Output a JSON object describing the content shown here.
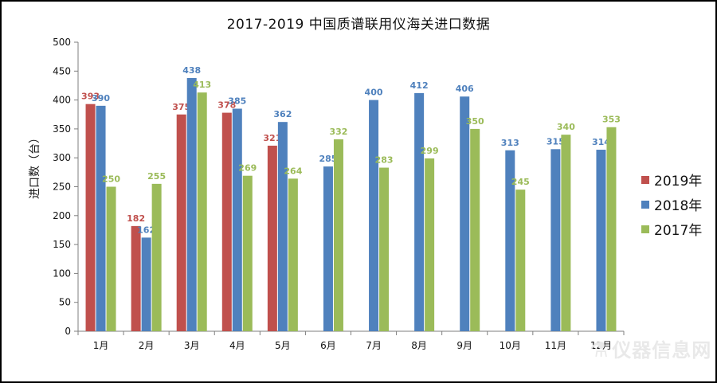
{
  "colors": {
    "2019": "#C0504D",
    "2018": "#4F81BD",
    "2017": "#9BBB59",
    "axis": "#7f7f7f"
  },
  "watermark": {
    "text": "仪器信息网",
    "icon": "instrument-logo-icon"
  },
  "chart_data": {
    "type": "bar",
    "title": "2017-2019 中国质谱联用仪海关进口数据",
    "xlabel": "",
    "ylabel": "进口数（台）",
    "ylim": [
      0,
      500
    ],
    "yticks": [
      0,
      50,
      100,
      150,
      200,
      250,
      300,
      350,
      400,
      450,
      500
    ],
    "categories": [
      "1月",
      "2月",
      "3月",
      "4月",
      "5月",
      "6月",
      "7月",
      "8月",
      "9月",
      "10月",
      "11月",
      "12月"
    ],
    "legend_position": "right",
    "grid": false,
    "series": [
      {
        "name": "2019年",
        "color_key": "2019",
        "values": [
          393,
          182,
          375,
          378,
          321,
          null,
          null,
          null,
          null,
          null,
          null,
          null
        ]
      },
      {
        "name": "2018年",
        "color_key": "2018",
        "values": [
          390,
          162,
          438,
          385,
          362,
          285,
          400,
          412,
          406,
          313,
          315,
          314
        ]
      },
      {
        "name": "2017年",
        "color_key": "2017",
        "values": [
          250,
          255,
          413,
          269,
          264,
          332,
          283,
          299,
          350,
          245,
          340,
          353
        ]
      }
    ]
  }
}
